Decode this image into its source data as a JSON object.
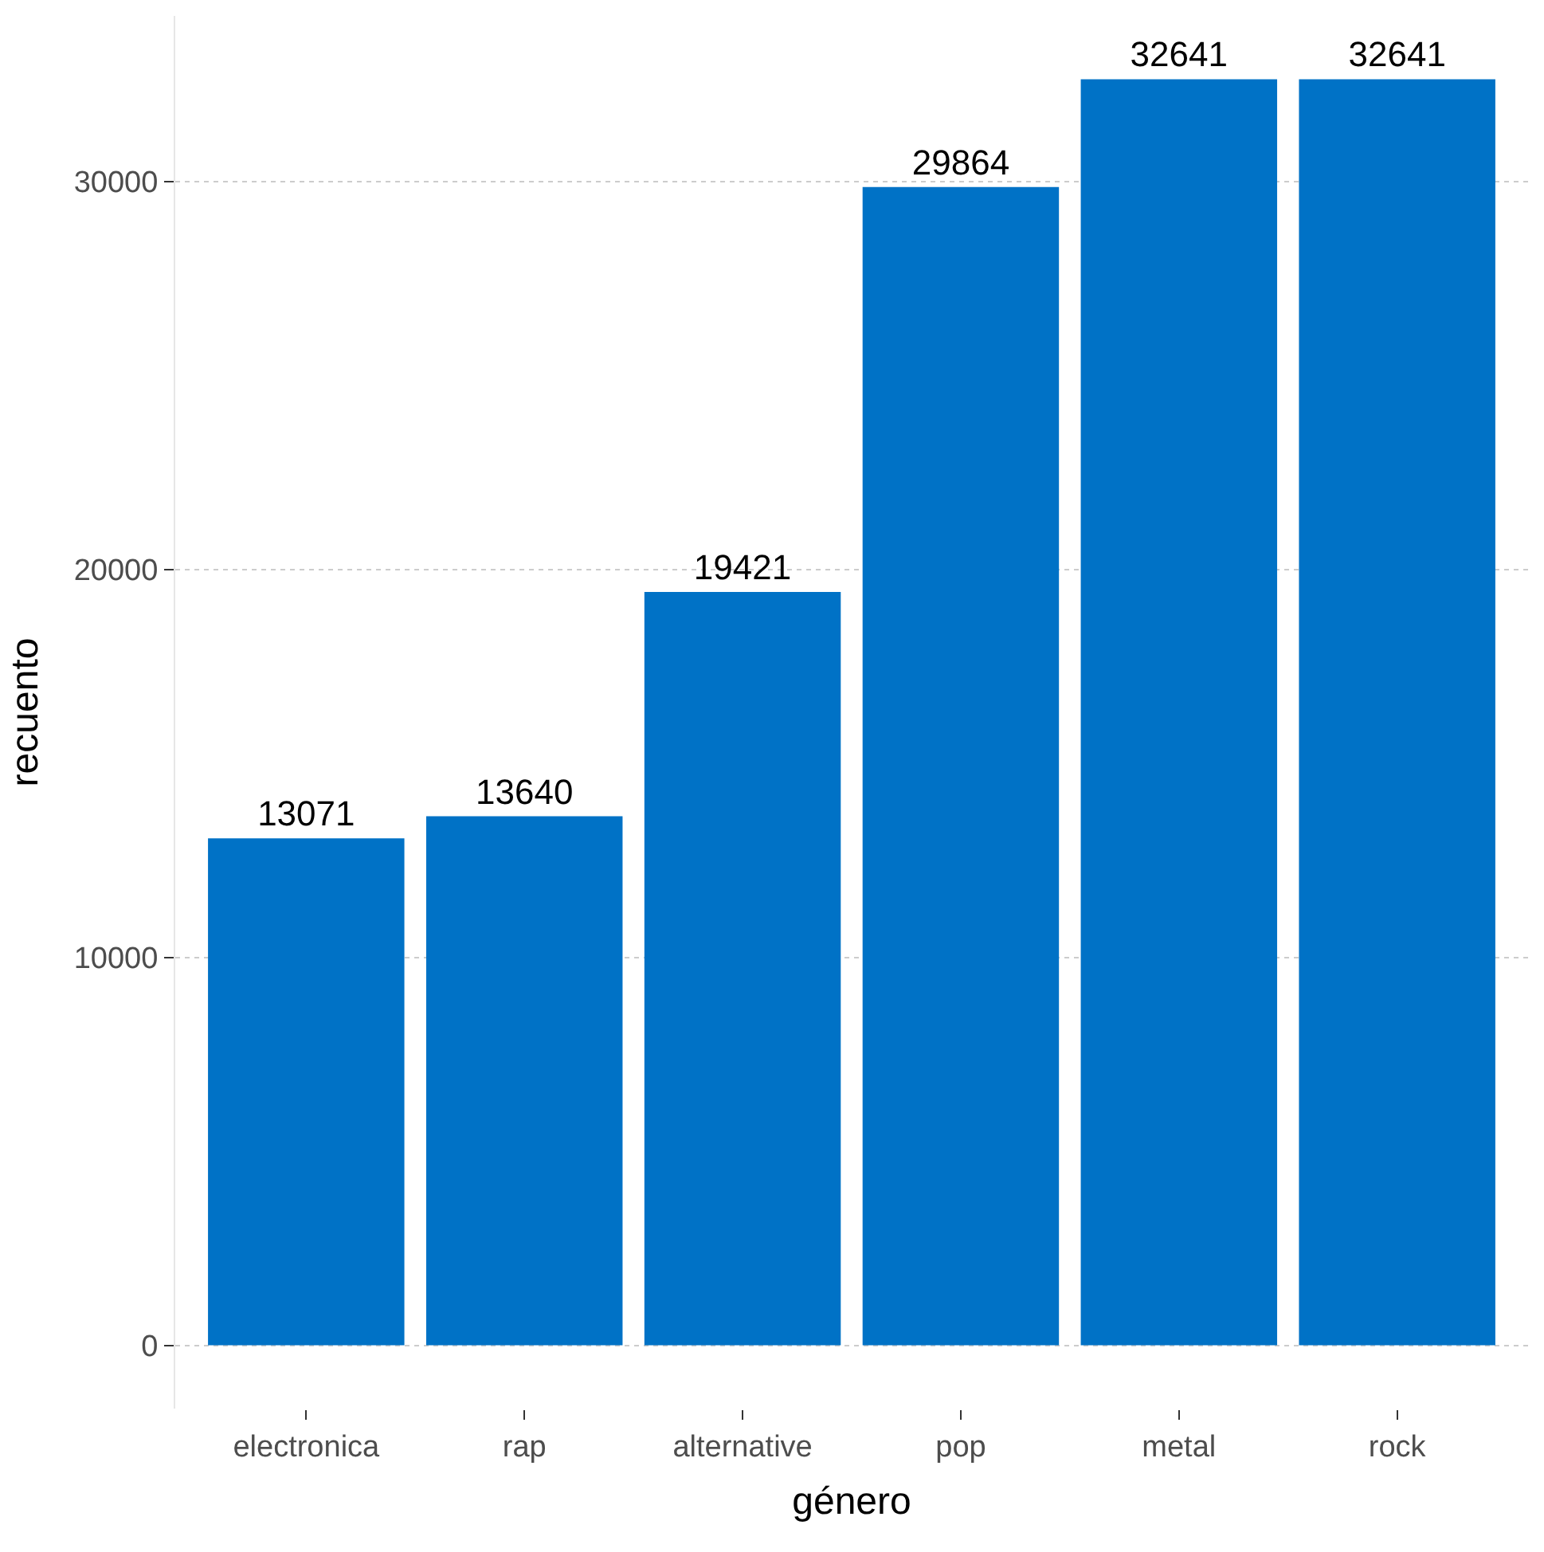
{
  "chart_data": {
    "type": "bar",
    "xlabel": "género",
    "ylabel": "recuento",
    "categories": [
      "electronica",
      "rap",
      "alternative",
      "pop",
      "metal",
      "rock"
    ],
    "values": [
      13071,
      13640,
      19421,
      29864,
      32641,
      32641
    ],
    "color": "#0072c6",
    "data_labels": true,
    "ylim": [
      -1632,
      34273
    ],
    "yticks": [
      0,
      10000,
      20000,
      30000
    ],
    "grid": "y",
    "legend": false
  }
}
